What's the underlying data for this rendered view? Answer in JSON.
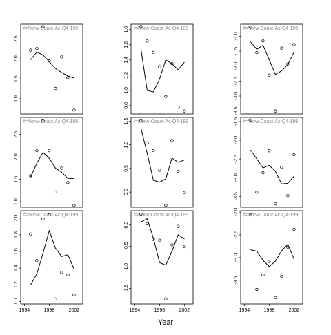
{
  "xlabel": "Year",
  "chart_data": [
    {
      "type": "line",
      "title": "f=Norw-Coast-Ac-Q4-199",
      "x": [
        1995,
        1996,
        1997,
        1998,
        1999,
        2000,
        2001,
        2002
      ],
      "xlim": [
        1993.4,
        2003.4
      ],
      "ylim": [
        0.62,
        2.87
      ],
      "yticks": [
        {
          "value": 1,
          "label": "1.0"
        },
        1.5,
        {
          "value": 2,
          "label": "2.0"
        },
        2.5
      ],
      "series": [
        {
          "style": "points",
          "color": "#000000",
          "values": [
            2.22,
            2.26,
            2.81,
            1.95,
            1.26,
            2.05,
            1.53,
            0.72
          ]
        },
        {
          "style": "line",
          "color": "#000000",
          "values": [
            1.98,
            2.17,
            2.1,
            1.93,
            1.76,
            1.66,
            1.57,
            1.52
          ]
        }
      ]
    },
    {
      "type": "line",
      "title": "f=Norw-Coast-Ac-Q4-199",
      "x": [
        1995,
        1996,
        1997,
        1998,
        1999,
        2000,
        2001,
        2002
      ],
      "xlim": [
        1993.4,
        2003.4
      ],
      "ylim": [
        0.69,
        1.87
      ],
      "yticks": [
        0.8,
        {
          "value": 1,
          "label": "1.0"
        },
        1.2,
        1.4,
        1.6,
        1.8
      ],
      "series": [
        {
          "style": "points",
          "color": "#000000",
          "values": [
            1.84,
            1.65,
            1.5,
            1.31,
            0.92,
            1.35,
            0.78,
            0.73
          ]
        },
        {
          "style": "line",
          "color": "#000000",
          "values": [
            1.54,
            1.0,
            0.98,
            1.15,
            1.4,
            1.35,
            1.27,
            1.37
          ]
        }
      ]
    },
    {
      "type": "line",
      "title": "f=Norw-Coast-Ac-Q4-199",
      "x": [
        1995,
        1996,
        1997,
        1998,
        1999,
        2000,
        2001,
        2002
      ],
      "xlim": [
        1993.4,
        2003.4
      ],
      "ylim": [
        -3.6,
        -0.6
      ],
      "yticks": [
        {
          "value": -3.5,
          "label": "-3.5"
        },
        {
          "value": -3,
          "label": "-3.0"
        },
        {
          "value": -2.5,
          "label": "-2.5"
        },
        {
          "value": -2,
          "label": "-2.0"
        },
        {
          "value": -1.5,
          "label": "-1.5"
        },
        {
          "value": -1,
          "label": "-1.0"
        }
      ],
      "series": [
        {
          "style": "points",
          "color": "#000000",
          "values": [
            -0.7,
            -1.55,
            -1.16,
            -2.3,
            -3.5,
            -1.4,
            -1.93,
            -1.28
          ]
        },
        {
          "style": "line",
          "color": "#000000",
          "values": [
            -1.19,
            -1.44,
            -1.3,
            -1.79,
            -2.28,
            -2.16,
            -1.95,
            -1.53
          ]
        }
      ]
    },
    {
      "type": "line",
      "title": "f=Norw-Coast-Ac-Q4-199",
      "x": [
        1995,
        1996,
        1997,
        1998,
        1999,
        2000,
        2001,
        2002
      ],
      "xlim": [
        1993.4,
        2003.4
      ],
      "ylim": [
        0.88,
        2.88
      ],
      "yticks": [
        {
          "value": 1,
          "label": "1.0"
        },
        1.5,
        {
          "value": 2,
          "label": "2.0"
        },
        2.5
      ],
      "series": [
        {
          "style": "points",
          "color": "#000000",
          "values": [
            1.58,
            2.14,
            2.8,
            2.14,
            1.22,
            1.75,
            1.43,
            0.92
          ]
        },
        {
          "style": "line",
          "color": "#000000",
          "values": [
            1.55,
            1.86,
            2.1,
            1.97,
            1.75,
            1.66,
            1.52,
            1.52
          ]
        }
      ]
    },
    {
      "type": "line",
      "title": "f=Norw-Coast-Ac-Q4-199",
      "x": [
        1995,
        1996,
        1997,
        1998,
        1999,
        2000,
        2001,
        2002
      ],
      "xlim": [
        1993.4,
        2003.4
      ],
      "ylim": [
        -0.32,
        1.58
      ],
      "yticks": [
        {
          "value": 0,
          "label": "0.0"
        },
        0.5,
        {
          "value": 1,
          "label": "1.0"
        },
        1.5
      ],
      "series": [
        {
          "style": "points",
          "color": "#000000",
          "values": [
            1.51,
            1.04,
            0.88,
            0.46,
            -0.28,
            1.09,
            0.44,
            -0.01
          ]
        },
        {
          "style": "line",
          "color": "#000000",
          "values": [
            1.35,
            0.82,
            0.25,
            0.21,
            0.28,
            0.72,
            0.63,
            0.68
          ]
        }
      ]
    },
    {
      "type": "line",
      "title": "f=Norw-Coast-Ac-Q4-199",
      "x": [
        1995,
        1996,
        1997,
        1998,
        1999,
        2000,
        2001,
        2002
      ],
      "xlim": [
        1993.4,
        2003.4
      ],
      "ylim": [
        -3.79,
        -1.39
      ],
      "yticks": [
        -3.5,
        {
          "value": -3,
          "label": "-3.0"
        },
        -2.5,
        {
          "value": -2,
          "label": "-2.0"
        },
        -1.5
      ],
      "series": [
        {
          "style": "points",
          "color": "#000000",
          "values": [
            -1.46,
            -3.39,
            -2.87,
            -2.28,
            -3.7,
            -2.72,
            -3.48,
            -2.39
          ]
        },
        {
          "style": "line",
          "color": "#000000",
          "values": [
            -2.26,
            -2.5,
            -2.74,
            -2.67,
            -2.83,
            -3.17,
            -3.15,
            -2.96
          ]
        }
      ]
    },
    {
      "type": "line",
      "title": "f=Norw-Coast-Ac-Q4-199",
      "x": [
        1995,
        1996,
        1997,
        1998,
        1999,
        2000,
        2001,
        2002
      ],
      "xlim": [
        1993.4,
        2003.4
      ],
      "xticks": [
        1994,
        1998,
        2002
      ],
      "ylim": [
        0.97,
        2.09
      ],
      "yticks": [
        {
          "value": 1,
          "label": "1.0"
        },
        1.2,
        1.4,
        1.6,
        1.8,
        {
          "value": 2,
          "label": "2.0"
        }
      ],
      "series": [
        {
          "style": "points",
          "color": "#000000",
          "values": [
            1.81,
            1.49,
            1.99,
            2.04,
            1.03,
            1.35,
            1.32,
            1.08
          ]
        },
        {
          "style": "line",
          "color": "#000000",
          "values": [
            1.2,
            1.33,
            1.58,
            1.85,
            1.64,
            1.54,
            1.56,
            1.39
          ]
        }
      ]
    },
    {
      "type": "line",
      "title": "f=Norw-Coast-Ac-Q4-199",
      "x": [
        1995,
        1996,
        1997,
        1998,
        1999,
        2000,
        2001,
        2002
      ],
      "xlim": [
        1993.4,
        2003.4
      ],
      "xticks": [
        1994,
        1998,
        2002
      ],
      "ylim": [
        -1.87,
        0.34
      ],
      "yticks": [
        -1.5,
        {
          "value": -1,
          "label": "-1.0"
        },
        -0.5,
        {
          "value": 0,
          "label": "0.0"
        }
      ],
      "series": [
        {
          "style": "points",
          "color": "#000000",
          "values": [
            0.26,
            0.03,
            -0.34,
            -0.36,
            -1.75,
            -0.47,
            -0.03,
            -0.51
          ]
        },
        {
          "style": "line",
          "color": "#000000",
          "values": [
            0.07,
            0.15,
            -0.31,
            -0.89,
            -0.95,
            -0.62,
            -0.23,
            -0.33
          ]
        }
      ]
    },
    {
      "type": "line",
      "title": "f=Norw-Coast-Ac-Q4-199",
      "x": [
        1995,
        1996,
        1997,
        1998,
        1999,
        2000,
        2001,
        2002
      ],
      "xlim": [
        1993.4,
        2003.4
      ],
      "xticks": [
        1994,
        1998,
        2002
      ],
      "ylim": [
        -4.02,
        -1.97
      ],
      "yticks": [
        -3.5,
        {
          "value": -3,
          "label": "-3.0"
        },
        -2.5,
        {
          "value": -2,
          "label": "-2.0"
        }
      ],
      "series": [
        {
          "style": "points",
          "color": "#000000",
          "values": [
            -2.06,
            -3.7,
            -3.38,
            -3.09,
            -3.88,
            -3.41,
            -2.77,
            -2.38
          ]
        },
        {
          "style": "line",
          "color": "#000000",
          "values": [
            -2.83,
            -2.86,
            -3.06,
            -3.2,
            -3.08,
            -2.85,
            -2.71,
            -3.03
          ]
        }
      ]
    }
  ]
}
